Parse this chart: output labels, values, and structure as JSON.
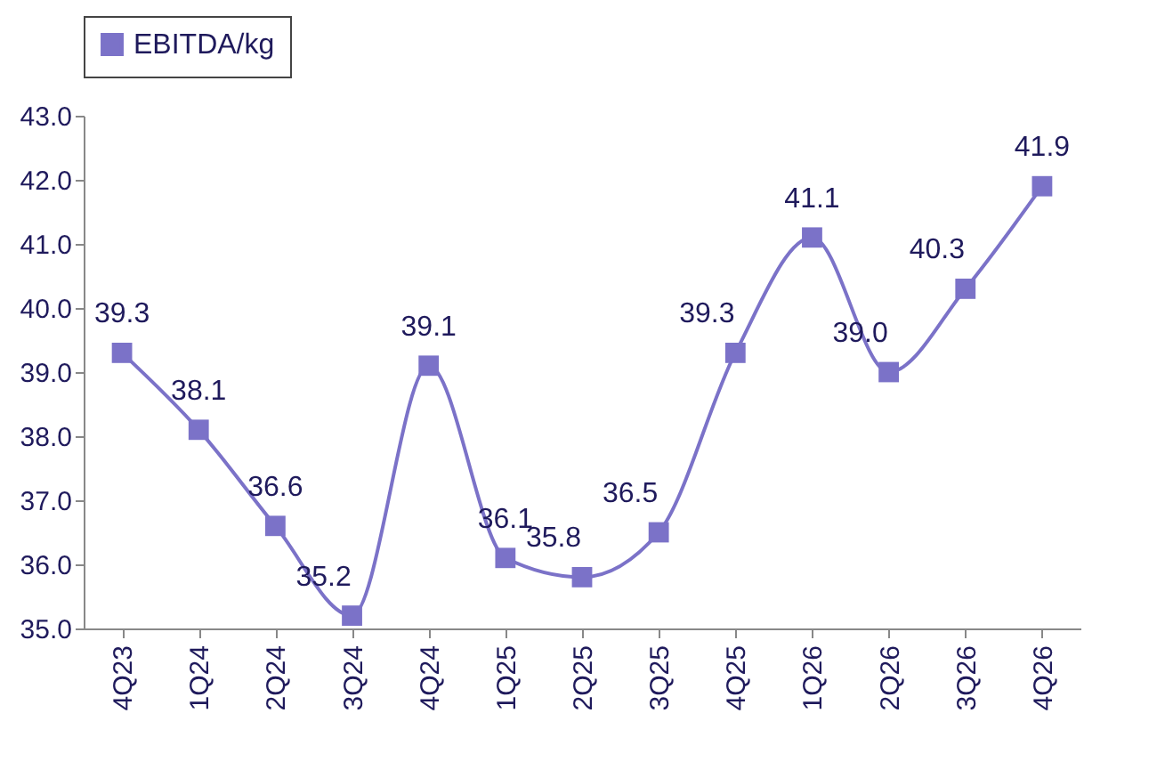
{
  "chart_data": {
    "type": "line",
    "categories": [
      "4Q23",
      "1Q24",
      "2Q24",
      "3Q24",
      "4Q24",
      "1Q25",
      "2Q25",
      "3Q25",
      "4Q25",
      "1Q26",
      "2Q26",
      "3Q26",
      "4Q26"
    ],
    "series": [
      {
        "name": "EBITDA/kg",
        "color": "#7b72c8",
        "values": [
          39.3,
          38.1,
          36.6,
          35.2,
          39.1,
          36.1,
          35.8,
          36.5,
          39.3,
          41.1,
          39.0,
          40.3,
          41.9
        ],
        "value_labels": [
          "39.3",
          "38.1",
          "36.6",
          "35.2",
          "39.1",
          "36.1",
          "35.8",
          "36.5",
          "39.3",
          "41.1",
          "39.0",
          "40.3",
          "41.9"
        ]
      }
    ],
    "ylim": [
      35,
      43
    ],
    "yticks": [
      {
        "value": 35,
        "label": "35.0"
      },
      {
        "value": 36,
        "label": "36.0"
      },
      {
        "value": 37,
        "label": "37.0"
      },
      {
        "value": 38,
        "label": "38.0"
      },
      {
        "value": 39,
        "label": "39.0"
      },
      {
        "value": 40,
        "label": "40.0"
      },
      {
        "value": 41,
        "label": "41.0"
      },
      {
        "value": 42,
        "label": "42.0"
      },
      {
        "value": 43,
        "label": "43.0"
      }
    ],
    "grid": false,
    "legend": "top",
    "marker": "square",
    "line_style": "solid"
  }
}
